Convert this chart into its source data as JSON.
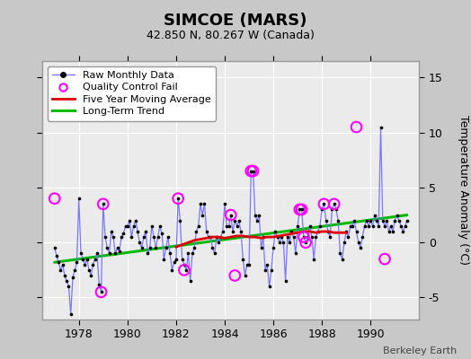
{
  "title": "SIMCOE (MARS)",
  "subtitle": "42.850 N, 80.267 W (Canada)",
  "credit": "Berkeley Earth",
  "ylabel": "Temperature Anomaly (°C)",
  "xlim": [
    1976.5,
    1992.0
  ],
  "ylim": [
    -7.0,
    16.5
  ],
  "yticks": [
    -5,
    0,
    5,
    10,
    15
  ],
  "xticks": [
    1978,
    1980,
    1982,
    1984,
    1986,
    1988,
    1990
  ],
  "bg_color": "#c8c8c8",
  "plot_bg": "#ebebeb",
  "raw_color": "#7777ff",
  "dot_color": "#000000",
  "qc_color": "#ff00ff",
  "ma_color": "#dd0000",
  "trend_color": "#00bb00",
  "raw_x": [
    1977.0,
    1977.083,
    1977.167,
    1977.25,
    1977.333,
    1977.417,
    1977.5,
    1977.583,
    1977.667,
    1977.75,
    1977.833,
    1977.917,
    1978.0,
    1978.083,
    1978.167,
    1978.25,
    1978.333,
    1978.417,
    1978.5,
    1978.583,
    1978.667,
    1978.75,
    1978.833,
    1978.917,
    1979.0,
    1979.083,
    1979.167,
    1979.25,
    1979.333,
    1979.417,
    1979.5,
    1979.583,
    1979.667,
    1979.75,
    1979.833,
    1979.917,
    1980.0,
    1980.083,
    1980.167,
    1980.25,
    1980.333,
    1980.417,
    1980.5,
    1980.583,
    1980.667,
    1980.75,
    1980.833,
    1980.917,
    1981.0,
    1981.083,
    1981.167,
    1981.25,
    1981.333,
    1981.417,
    1981.5,
    1981.583,
    1981.667,
    1981.75,
    1981.833,
    1981.917,
    1982.0,
    1982.083,
    1982.167,
    1982.25,
    1982.333,
    1982.417,
    1982.5,
    1982.583,
    1982.667,
    1982.75,
    1982.833,
    1982.917,
    1983.0,
    1983.083,
    1983.167,
    1983.25,
    1983.333,
    1983.417,
    1983.5,
    1983.583,
    1983.667,
    1983.75,
    1983.833,
    1983.917,
    1984.0,
    1984.083,
    1984.167,
    1984.25,
    1984.333,
    1984.417,
    1984.5,
    1984.583,
    1984.667,
    1984.75,
    1984.833,
    1984.917,
    1985.0,
    1985.083,
    1985.167,
    1985.25,
    1985.333,
    1985.417,
    1985.5,
    1985.583,
    1985.667,
    1985.75,
    1985.833,
    1985.917,
    1986.0,
    1986.083,
    1986.167,
    1986.25,
    1986.333,
    1986.417,
    1986.5,
    1986.583,
    1986.667,
    1986.75,
    1986.833,
    1986.917,
    1987.0,
    1987.083,
    1987.167,
    1987.25,
    1987.333,
    1987.417,
    1987.5,
    1987.583,
    1987.667,
    1987.75,
    1987.833,
    1987.917,
    1988.0,
    1988.083,
    1988.167,
    1988.25,
    1988.333,
    1988.417,
    1988.5,
    1988.583,
    1988.667,
    1988.75,
    1988.833,
    1988.917,
    1989.0,
    1989.083,
    1989.167,
    1989.25,
    1989.333,
    1989.417,
    1989.5,
    1989.583,
    1989.667,
    1989.75,
    1989.833,
    1989.917,
    1990.0,
    1990.083,
    1990.167,
    1990.25,
    1990.333,
    1990.417,
    1990.5,
    1990.583,
    1990.667,
    1990.75,
    1990.833,
    1990.917,
    1991.0,
    1991.083,
    1991.167,
    1991.25,
    1991.333,
    1991.417,
    1991.5
  ],
  "raw_y": [
    -0.5,
    -1.2,
    -1.8,
    -2.5,
    -2.0,
    -3.0,
    -3.5,
    -4.0,
    -6.5,
    -3.2,
    -2.5,
    -1.8,
    4.0,
    -1.0,
    -1.5,
    -2.0,
    -1.5,
    -2.5,
    -3.0,
    -2.0,
    -1.5,
    -1.0,
    -3.8,
    -4.5,
    3.5,
    0.5,
    -0.5,
    -1.0,
    1.0,
    0.5,
    -1.0,
    -0.5,
    -0.8,
    0.5,
    0.8,
    1.5,
    1.5,
    2.0,
    0.5,
    1.5,
    2.0,
    1.0,
    0.0,
    -0.5,
    0.5,
    1.0,
    -1.0,
    -0.5,
    1.5,
    0.5,
    -0.5,
    0.5,
    1.5,
    0.8,
    -1.5,
    -0.5,
    0.5,
    -1.0,
    -2.5,
    -1.8,
    -1.5,
    4.0,
    2.0,
    -1.5,
    -2.0,
    -2.5,
    -1.0,
    -3.5,
    -1.0,
    -0.5,
    1.0,
    1.5,
    3.5,
    2.5,
    3.5,
    1.0,
    0.5,
    0.5,
    -0.5,
    -1.0,
    0.5,
    0.0,
    0.5,
    1.0,
    3.5,
    1.5,
    1.5,
    2.5,
    1.0,
    2.0,
    1.5,
    2.0,
    1.0,
    -1.5,
    -3.0,
    -2.0,
    -2.0,
    6.5,
    6.5,
    2.5,
    2.0,
    2.5,
    -0.5,
    0.5,
    -2.5,
    -2.0,
    -4.0,
    -2.5,
    -0.5,
    1.0,
    0.5,
    0.0,
    0.5,
    0.0,
    -3.5,
    0.5,
    0.0,
    1.0,
    0.5,
    -1.0,
    1.5,
    3.0,
    3.0,
    0.5,
    0.0,
    0.5,
    1.5,
    0.5,
    -1.5,
    0.5,
    1.0,
    1.5,
    3.0,
    3.5,
    2.0,
    1.0,
    0.5,
    3.0,
    3.5,
    3.0,
    2.0,
    -1.0,
    -1.5,
    0.0,
    1.0,
    0.5,
    1.5,
    1.5,
    2.0,
    1.0,
    0.0,
    -0.5,
    0.5,
    1.5,
    2.0,
    1.5,
    2.0,
    1.5,
    2.5,
    2.0,
    1.5,
    10.5,
    2.0,
    1.5,
    2.0,
    1.0,
    1.5,
    1.0,
    2.0,
    2.5,
    2.0,
    1.5,
    1.0,
    1.5,
    2.0
  ],
  "qc_x": [
    1977.0,
    1978.917,
    1979.0,
    1982.083,
    1982.333,
    1984.25,
    1984.417,
    1985.083,
    1985.167,
    1987.083,
    1987.167,
    1987.25,
    1987.333,
    1988.083,
    1988.5,
    1989.417,
    1990.583
  ],
  "qc_y": [
    4.0,
    -4.5,
    3.5,
    4.0,
    -2.5,
    2.5,
    -3.0,
    6.5,
    6.5,
    3.0,
    3.0,
    0.5,
    0.0,
    3.5,
    3.5,
    10.5,
    -1.5
  ],
  "ma_x": [
    1982.0,
    1982.25,
    1982.5,
    1982.75,
    1983.0,
    1983.25,
    1983.5,
    1983.75,
    1984.0,
    1984.25,
    1984.5,
    1984.75,
    1985.0,
    1985.25,
    1985.5,
    1985.75,
    1986.0,
    1986.25,
    1986.5,
    1986.75,
    1987.0,
    1987.25,
    1987.5,
    1987.75,
    1988.0,
    1988.25,
    1988.5,
    1988.75,
    1989.0
  ],
  "ma_y": [
    -0.4,
    -0.2,
    0.0,
    0.2,
    0.3,
    0.4,
    0.5,
    0.5,
    0.4,
    0.5,
    0.6,
    0.6,
    0.5,
    0.5,
    0.4,
    0.5,
    0.5,
    0.6,
    0.7,
    0.8,
    0.9,
    1.0,
    1.0,
    0.9,
    1.0,
    1.0,
    0.9,
    0.9,
    0.9
  ],
  "trend_x": [
    1977.0,
    1991.5
  ],
  "trend_y": [
    -1.8,
    2.5
  ]
}
